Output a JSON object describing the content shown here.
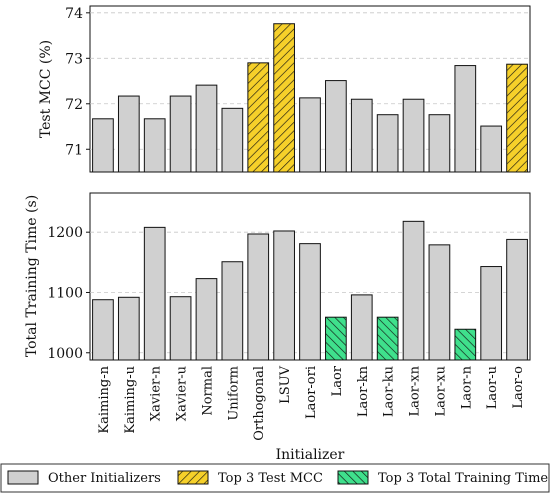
{
  "colors": {
    "other": "#d0d0d0",
    "mcc": "#f6d02a",
    "time": "#3fe08c",
    "edge": "#111111",
    "grid": "#c8c8c8"
  },
  "chart_data": [
    {
      "type": "bar",
      "ylabel": "Test MCC (%)",
      "ylim": [
        70.5,
        74.15
      ],
      "yticks": [
        71,
        72,
        73,
        74
      ],
      "grid": true,
      "categories": [
        "Kaiming-n",
        "Kaiming-u",
        "Xavier-n",
        "Xavier-u",
        "Normal",
        "Uniform",
        "Orthogonal",
        "LSUV",
        "Laor-ori",
        "Laor",
        "Laor-kn",
        "Laor-ku",
        "Laor-xn",
        "Laor-xu",
        "Laor-n",
        "Laor-u",
        "Laor-o"
      ],
      "values": [
        71.67,
        72.17,
        71.67,
        72.17,
        72.41,
        71.9,
        72.9,
        73.76,
        72.13,
        72.51,
        72.1,
        71.76,
        72.1,
        71.76,
        72.84,
        71.51,
        72.87
      ],
      "highlight": [
        "other",
        "other",
        "other",
        "other",
        "other",
        "other",
        "mcc",
        "mcc",
        "other",
        "other",
        "other",
        "other",
        "other",
        "other",
        "other",
        "other",
        "mcc"
      ]
    },
    {
      "type": "bar",
      "xlabel": "Initializer",
      "ylabel": "Total Training Time (s)",
      "ylim": [
        988,
        1265
      ],
      "yticks": [
        1000,
        1100,
        1200
      ],
      "grid": true,
      "categories": [
        "Kaiming-n",
        "Kaiming-u",
        "Xavier-n",
        "Xavier-u",
        "Normal",
        "Uniform",
        "Orthogonal",
        "LSUV",
        "Laor-ori",
        "Laor",
        "Laor-kn",
        "Laor-ku",
        "Laor-xn",
        "Laor-xu",
        "Laor-n",
        "Laor-u",
        "Laor-o"
      ],
      "values": [
        1088,
        1092,
        1208,
        1093,
        1123,
        1151,
        1197,
        1202,
        1181,
        1059,
        1096,
        1059,
        1218,
        1179,
        1039,
        1143,
        1188
      ],
      "highlight": [
        "other",
        "other",
        "other",
        "other",
        "other",
        "other",
        "other",
        "other",
        "other",
        "time",
        "other",
        "time",
        "other",
        "other",
        "time",
        "other",
        "other"
      ]
    }
  ],
  "legend": {
    "placement": "bottom",
    "items": [
      {
        "key": "other",
        "label": "Other Initializers",
        "hatch": false
      },
      {
        "key": "mcc",
        "label": "Top 3 Test MCC",
        "hatch": true
      },
      {
        "key": "time",
        "label": "Top 3 Total Training Time",
        "hatch": true
      }
    ]
  }
}
